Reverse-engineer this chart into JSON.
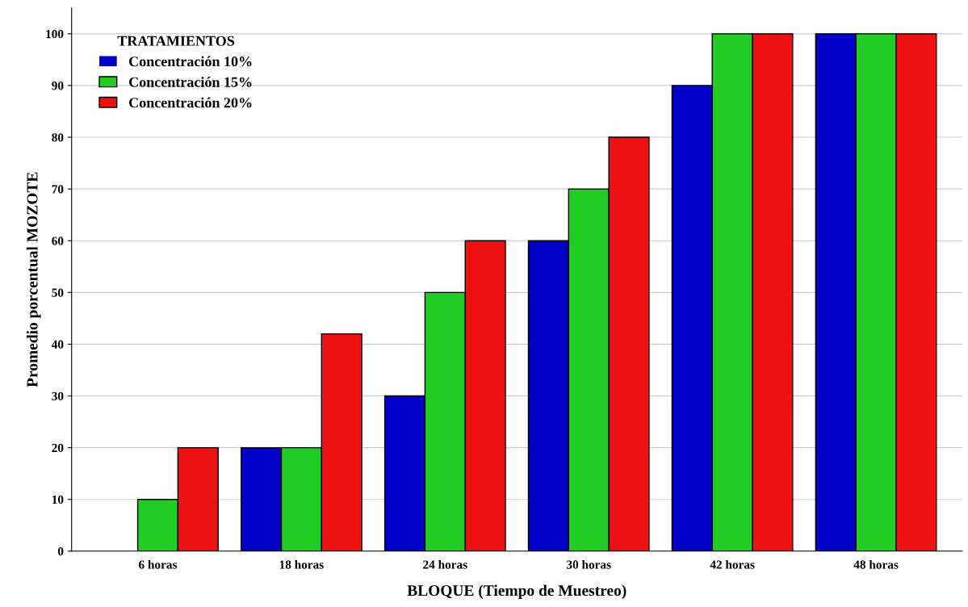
{
  "chart_data": {
    "type": "bar",
    "xlabel": "BLOQUE (Tiempo de Muestreo)",
    "ylabel": "Promedio porcentual MOZOTE",
    "legend_title": "TRATAMIENTOS",
    "categories": [
      "6 horas",
      "18 horas",
      "24 horas",
      "30 horas",
      "42 horas",
      "48 horas"
    ],
    "series": [
      {
        "name": "Concentración 10%",
        "color": "#0000c8",
        "values": [
          0,
          20,
          30,
          60,
          90,
          100
        ]
      },
      {
        "name": "Concentración 15%",
        "color": "#22cc22",
        "values": [
          10,
          20,
          50,
          70,
          100,
          100
        ]
      },
      {
        "name": "Concentración 20%",
        "color": "#ee1111",
        "values": [
          20,
          42,
          60,
          80,
          100,
          100
        ]
      }
    ],
    "ylim": [
      0,
      105
    ],
    "yticks": [
      0,
      10,
      20,
      30,
      40,
      50,
      60,
      70,
      80,
      90,
      100
    ],
    "grid": "y",
    "legend": "top left"
  }
}
